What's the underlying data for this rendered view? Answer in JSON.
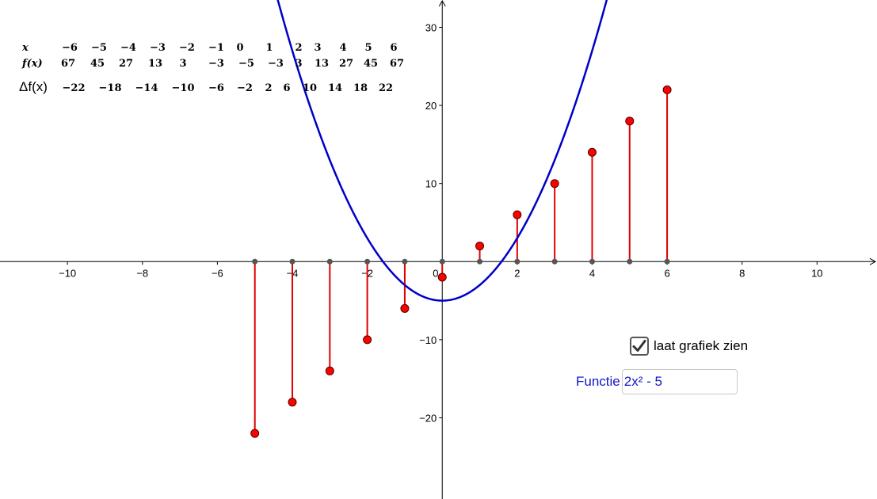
{
  "colors": {
    "curve": "#0000c8",
    "stem": "#e00000",
    "point_fill": "#ff0000",
    "axis": "#000000",
    "input_text": "#1515c8"
  },
  "table": {
    "x_header": "x",
    "fx_header": "f(x)",
    "delta_header": "Δf(x)",
    "x_values": [
      "−6",
      "−5",
      "−4",
      "−3",
      "−2",
      "−1",
      "0",
      "1",
      "2",
      "3",
      "4",
      "5",
      "6"
    ],
    "fx_values": [
      "67",
      "45",
      "27",
      "13",
      "3",
      "−3",
      "−5",
      "−3",
      "3",
      "13",
      "27",
      "45",
      "67"
    ],
    "delta_values": [
      "−22",
      "−18",
      "−14",
      "−10",
      "−6",
      "−2",
      "2",
      "6",
      "10",
      "14",
      "18",
      "22"
    ]
  },
  "controls": {
    "checkbox_label": "laat grafiek zien",
    "checkbox_checked": true,
    "input_label": "Functie",
    "input_value": "2x² - 5"
  },
  "chart_data": {
    "type": "line",
    "function": "2x² - 5",
    "xlim": [
      -11.8,
      11.6
    ],
    "ylim": [
      -30.4,
      33.5
    ],
    "x_ticks": [
      -10,
      -8,
      -6,
      -4,
      -2,
      0,
      2,
      4,
      6,
      8,
      10
    ],
    "x_tick_labels": [
      "−10",
      "−8",
      "−6",
      "−4",
      "−2",
      "0",
      "2",
      "4",
      "6",
      "8",
      "10"
    ],
    "y_ticks": [
      -20,
      -10,
      10,
      20,
      30
    ],
    "y_tick_labels": [
      "−20",
      "−10",
      "10",
      "20",
      "30"
    ],
    "grid": false,
    "series": [
      {
        "kind": "curve",
        "formula": "2x² - 5"
      },
      {
        "kind": "stems",
        "x": [
          -5,
          -4,
          -3,
          -2,
          -1,
          0,
          1,
          2,
          3,
          4,
          5,
          6
        ],
        "y": [
          -22,
          -18,
          -14,
          -10,
          -6,
          -2,
          2,
          6,
          10,
          14,
          18,
          22
        ]
      }
    ]
  }
}
